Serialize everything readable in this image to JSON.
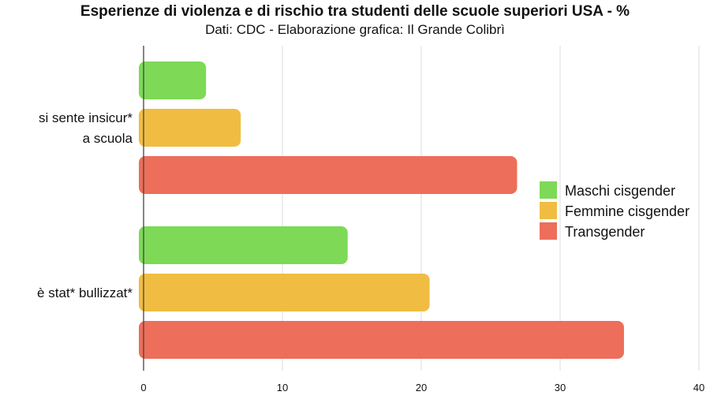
{
  "title": "Esperienze di violenza e di rischio tra studenti delle scuole superiori USA - %",
  "subtitle": "Dati: CDC - Elaborazione grafica: Il Grande Colibrì",
  "chart_data": {
    "type": "bar",
    "orientation": "horizontal",
    "categories": [
      [
        "si sente insicur*",
        "a scuola"
      ],
      [
        "è stat* bullizzat*"
      ]
    ],
    "series": [
      {
        "name": "Maschi cisgender",
        "color": "#7ed957",
        "values": [
          4.5,
          14.7
        ]
      },
      {
        "name": "Femmine cisgender",
        "color": "#f0bd42",
        "values": [
          7.0,
          20.6
        ]
      },
      {
        "name": "Transgender",
        "color": "#ed6e5a",
        "values": [
          26.9,
          34.6
        ]
      }
    ],
    "xlim": [
      0,
      40
    ],
    "xticks": [
      0,
      10,
      20,
      30,
      40
    ],
    "grid": true,
    "legend": "right"
  }
}
